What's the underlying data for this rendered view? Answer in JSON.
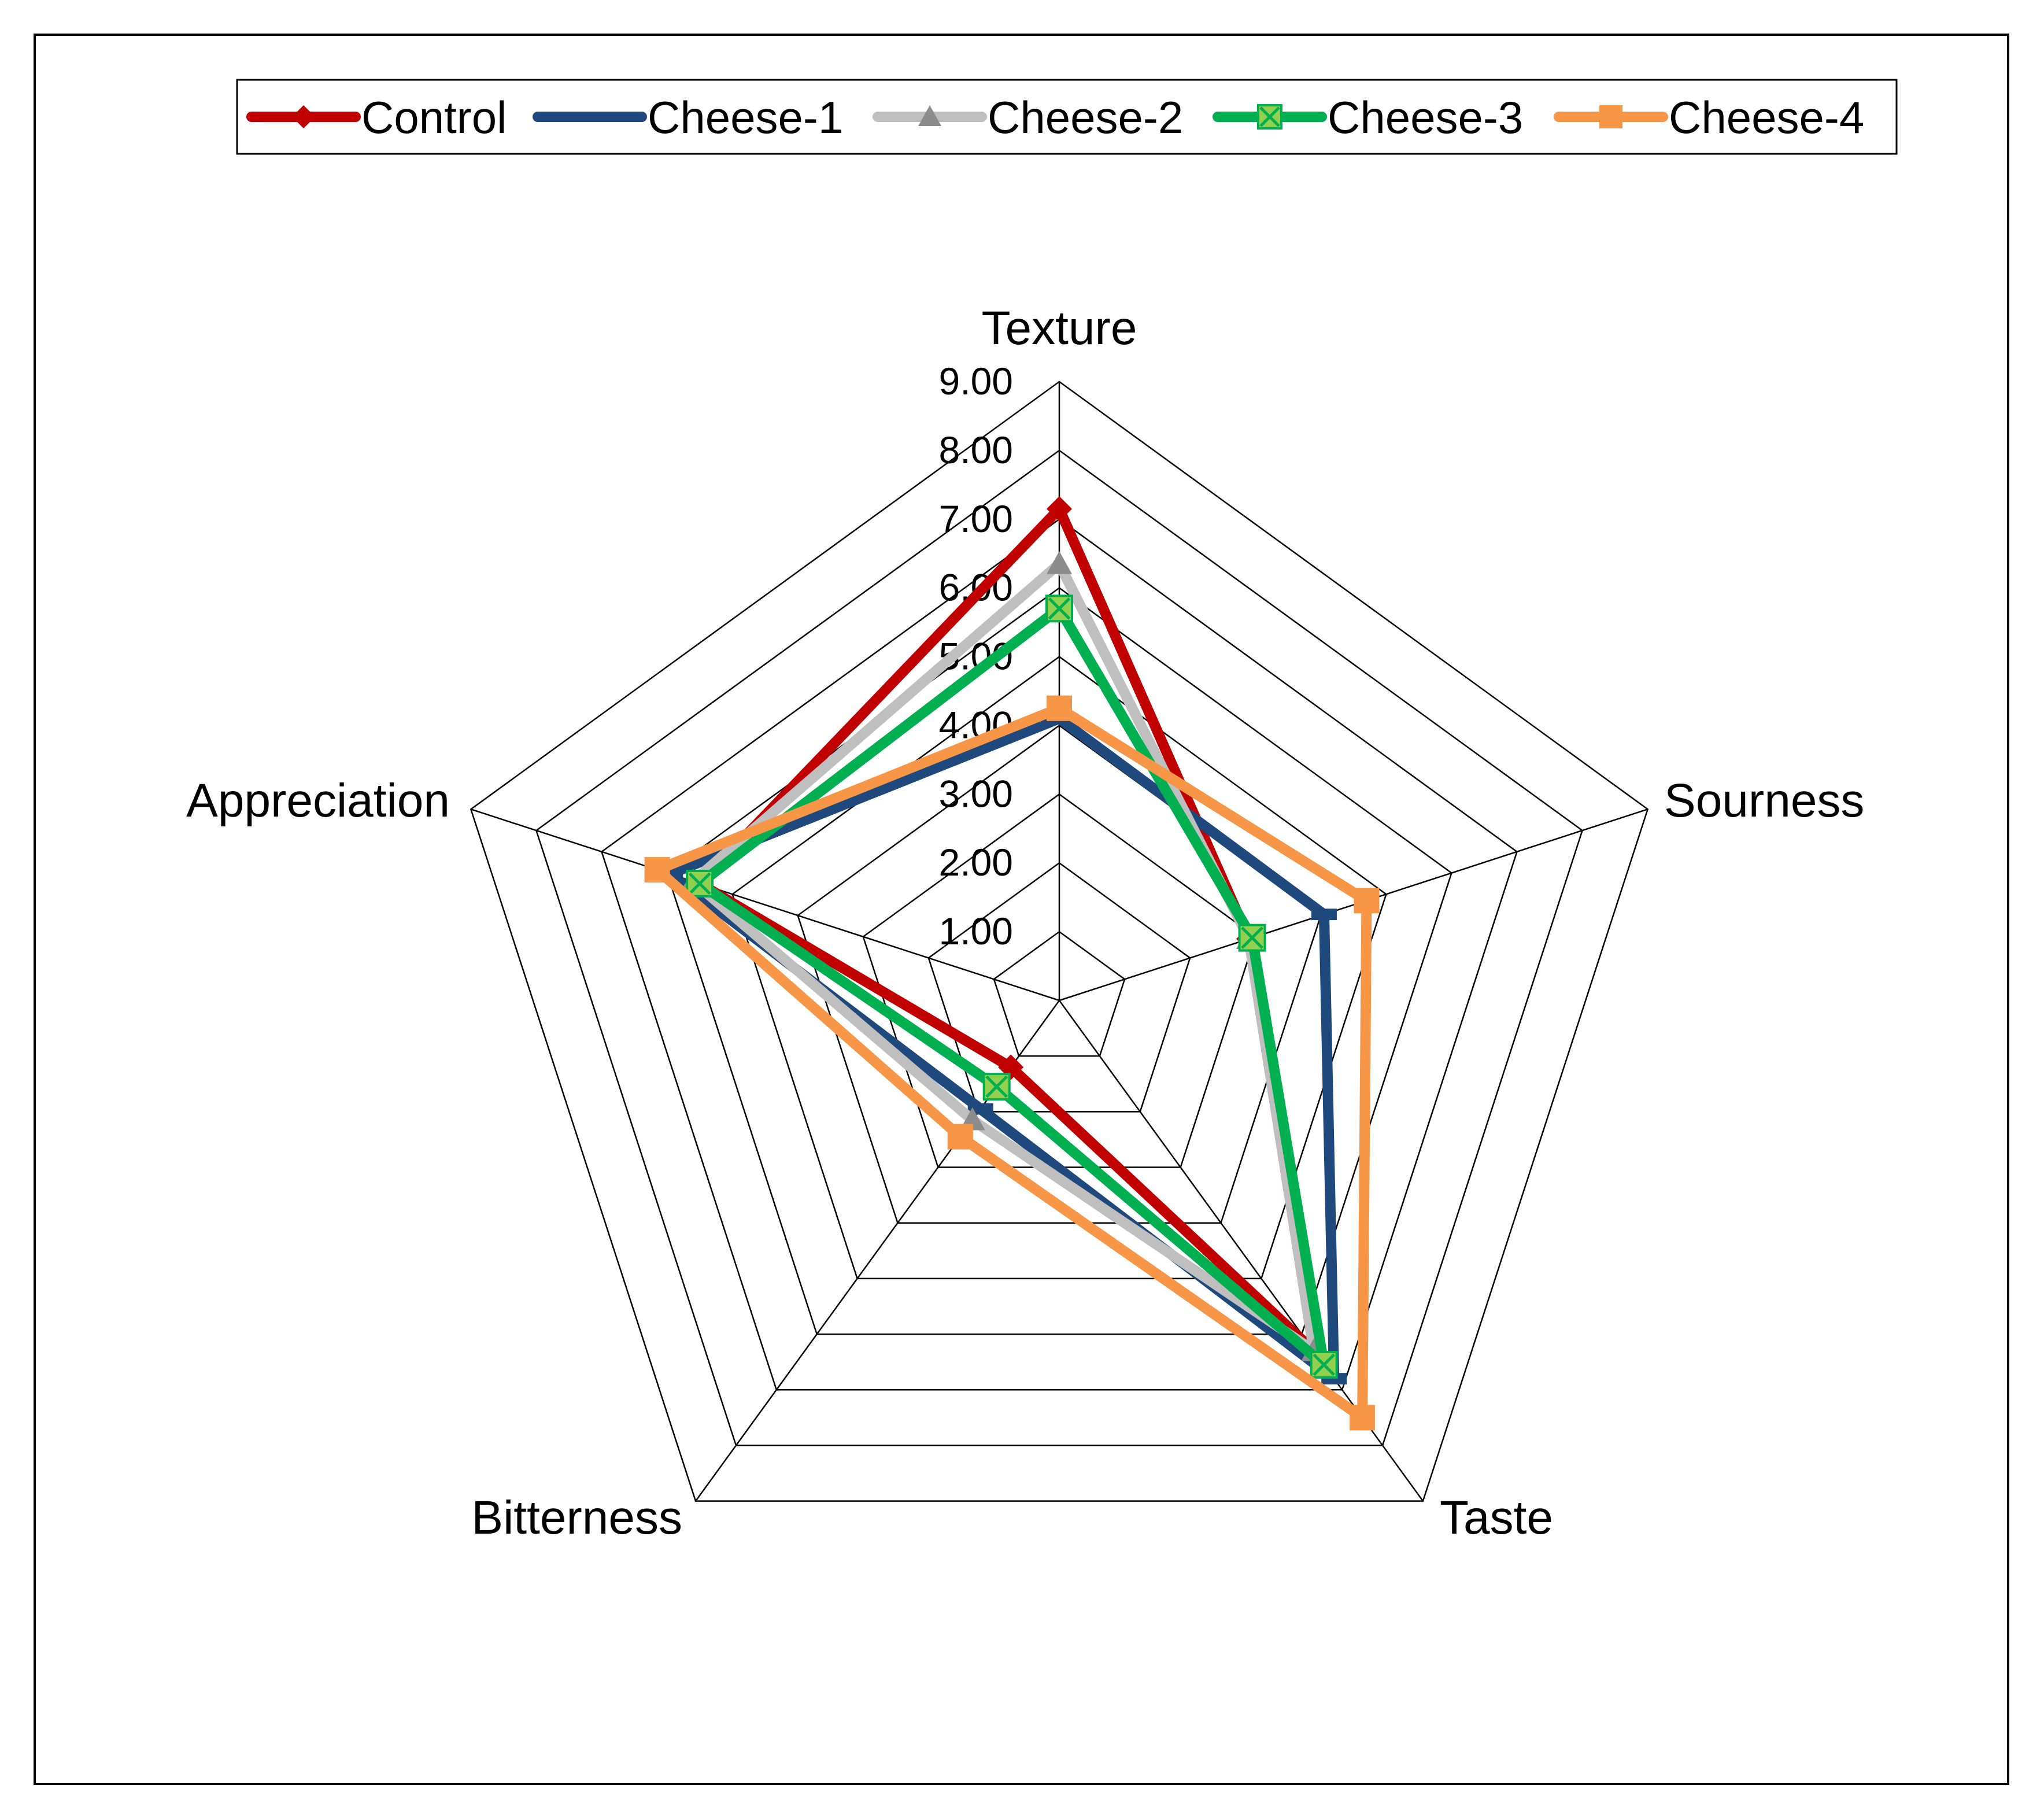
{
  "chart_data": {
    "type": "radar",
    "axes": [
      "Texture",
      "Sourness",
      "Taste",
      "Bitterness",
      "Appreciation"
    ],
    "range": [
      0,
      9
    ],
    "ticks": [
      "1.00",
      "2.00",
      "3.00",
      "4.00",
      "5.00",
      "6.00",
      "7.00",
      "8.00",
      "9.00"
    ],
    "legend_position": "top",
    "grid": true,
    "series": [
      {
        "name": "Control",
        "color": "#C00000",
        "marker": "diamond",
        "values": [
          7.15,
          2.9,
          6.3,
          1.2,
          5.5
        ]
      },
      {
        "name": "Cheese-1",
        "color": "#1F497D",
        "marker": "dash",
        "values": [
          4.1,
          4.05,
          6.8,
          1.95,
          5.95
        ]
      },
      {
        "name": "Cheese-2",
        "color": "#BFBFBF",
        "marker": "triangle",
        "values": [
          6.35,
          2.9,
          6.3,
          2.15,
          5.6
        ]
      },
      {
        "name": "Cheese-3",
        "color": "#00B050",
        "marker": "x-square",
        "values": [
          5.7,
          2.95,
          6.55,
          1.55,
          5.5
        ]
      },
      {
        "name": "Cheese-4",
        "color": "#F79646",
        "marker": "square",
        "values": [
          4.25,
          4.7,
          7.5,
          2.45,
          6.15
        ]
      }
    ]
  }
}
